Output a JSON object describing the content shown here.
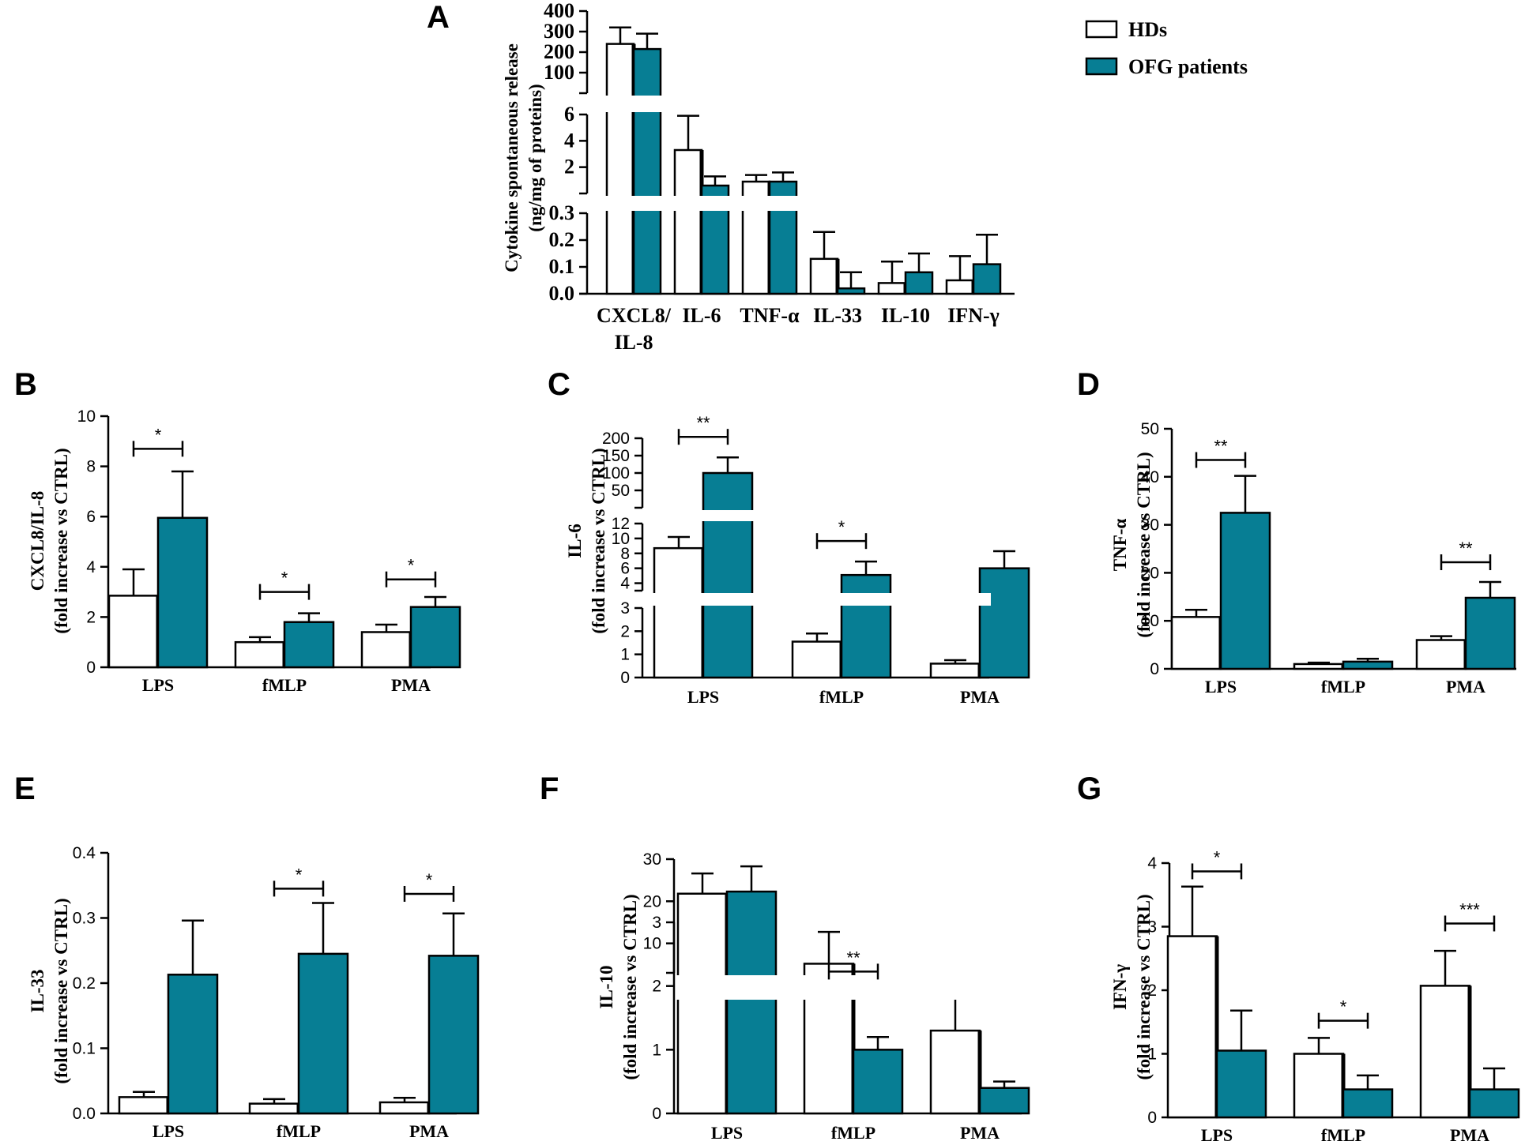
{
  "colors": {
    "hd": "#ffffff",
    "ofg": "#077e94",
    "stroke": "#000000"
  },
  "legend": {
    "hd_label": "HDs",
    "ofg_label": "OFG patients"
  },
  "chart_data": [
    {
      "panel": "A",
      "type": "bar",
      "ylabel": [
        "Cytokine spontaneous release",
        "(ng/mg of proteins)"
      ],
      "categories": [
        "CXCL8/ IL-8",
        "IL-6",
        "TNF-α",
        "IL-33",
        "IL-10",
        "IFN-γ"
      ],
      "series": [
        {
          "name": "HDs",
          "values": [
            240,
            3.3,
            0.9,
            0.13,
            0.04,
            0.05
          ],
          "errors": [
            80,
            2.6,
            0.5,
            0.1,
            0.08,
            0.09
          ]
        },
        {
          "name": "OFG patients",
          "values": [
            215,
            0.6,
            0.9,
            0.02,
            0.08,
            0.11
          ],
          "errors": [
            75,
            0.7,
            0.7,
            0.06,
            0.07,
            0.11
          ]
        }
      ],
      "y_segments": [
        {
          "range": [
            0,
            0.3
          ],
          "ticks": [
            0.0,
            0.1,
            0.2,
            0.3
          ],
          "tick_labels": [
            "0.0",
            "0.1",
            "0.2",
            "0.3"
          ]
        },
        {
          "range": [
            0,
            6
          ],
          "ticks": [
            2,
            4,
            6
          ],
          "tick_labels": [
            "2",
            "4",
            "6"
          ]
        },
        {
          "range": [
            0,
            400
          ],
          "ticks": [
            100,
            200,
            300,
            400
          ],
          "tick_labels": [
            "100",
            "200",
            "300",
            "400"
          ]
        }
      ],
      "significance": []
    },
    {
      "panel": "B",
      "type": "bar",
      "ylabel": [
        "CXCL8/IL-8",
        "(fold increase vs CTRL)"
      ],
      "categories": [
        "LPS",
        "fMLP",
        "PMA"
      ],
      "series": [
        {
          "name": "HDs",
          "values": [
            2.85,
            1.0,
            1.4
          ],
          "errors": [
            1.05,
            0.2,
            0.3
          ]
        },
        {
          "name": "OFG patients",
          "values": [
            5.95,
            1.8,
            2.4
          ],
          "errors": [
            1.85,
            0.35,
            0.4
          ]
        }
      ],
      "ylim": [
        0,
        10
      ],
      "yticks": [
        0,
        2,
        4,
        6,
        8,
        10
      ],
      "ytick_labels": [
        "0",
        "2",
        "4",
        "6",
        "8",
        "10"
      ],
      "significance": [
        {
          "group": 0,
          "label": "*",
          "y": 8.7
        },
        {
          "group": 1,
          "label": "*",
          "y": 3.0
        },
        {
          "group": 2,
          "label": "*",
          "y": 3.5
        }
      ]
    },
    {
      "panel": "C",
      "type": "bar",
      "ylabel": [
        "IL-6",
        "(fold increase vs CTRL)"
      ],
      "categories": [
        "LPS",
        "fMLP",
        "PMA"
      ],
      "series": [
        {
          "name": "HDs",
          "values": [
            8.7,
            1.55,
            0.6
          ],
          "errors": [
            1.5,
            0.35,
            0.15
          ]
        },
        {
          "name": "OFG patients",
          "values": [
            100,
            5.1,
            6.0
          ],
          "errors": [
            45,
            1.8,
            2.3
          ]
        }
      ],
      "y_segments": [
        {
          "range": [
            0,
            3
          ],
          "ticks": [
            0,
            1,
            2,
            3
          ],
          "tick_labels": [
            "0",
            "1",
            "2",
            "3"
          ]
        },
        {
          "range": [
            3,
            12
          ],
          "ticks": [
            4,
            6,
            8,
            10,
            12
          ],
          "tick_labels": [
            "4",
            "6",
            "8",
            "10",
            "12"
          ]
        },
        {
          "range": [
            0,
            200
          ],
          "ticks": [
            50,
            100,
            150,
            200
          ],
          "tick_labels": [
            "50",
            "100",
            "150",
            "200"
          ]
        }
      ],
      "significance": [
        {
          "group": 0,
          "label": "**"
        },
        {
          "group": 1,
          "label": "*"
        }
      ]
    },
    {
      "panel": "D",
      "type": "bar",
      "ylabel": [
        "TNF-α",
        "(fold increase vs CTRL)"
      ],
      "categories": [
        "LPS",
        "fMLP",
        "PMA"
      ],
      "series": [
        {
          "name": "HDs",
          "values": [
            10.8,
            1.0,
            6.0
          ],
          "errors": [
            1.5,
            0.3,
            0.8
          ]
        },
        {
          "name": "OFG patients",
          "values": [
            32.5,
            1.5,
            14.8
          ],
          "errors": [
            7.7,
            0.6,
            3.3
          ]
        }
      ],
      "ylim": [
        0,
        50
      ],
      "yticks": [
        0,
        10,
        20,
        30,
        40,
        50
      ],
      "ytick_labels": [
        "0",
        "10",
        "20",
        "30",
        "40",
        "50"
      ],
      "significance": [
        {
          "group": 0,
          "label": "**",
          "y": 43.5
        },
        {
          "group": 2,
          "label": "**",
          "y": 22.2
        }
      ]
    },
    {
      "panel": "E",
      "type": "bar",
      "ylabel": [
        "IL-33",
        "(fold increase vs CTRL)"
      ],
      "categories": [
        "LPS",
        "fMLP",
        "PMA"
      ],
      "series": [
        {
          "name": "HDs",
          "values": [
            0.025,
            0.015,
            0.017
          ],
          "errors": [
            0.008,
            0.007,
            0.007
          ]
        },
        {
          "name": "OFG patients",
          "values": [
            0.213,
            0.245,
            0.242
          ],
          "errors": [
            0.083,
            0.078,
            0.065
          ]
        }
      ],
      "ylim": [
        0,
        0.4
      ],
      "yticks": [
        0.0,
        0.1,
        0.2,
        0.3,
        0.4
      ],
      "ytick_labels": [
        "0.0",
        "0.1",
        "0.2",
        "0.3",
        "0.4"
      ],
      "significance": [
        {
          "group": 1,
          "label": "*",
          "y": 0.345
        },
        {
          "group": 2,
          "label": "*",
          "y": 0.337
        }
      ]
    },
    {
      "panel": "F",
      "type": "bar",
      "ylabel": [
        "IL-10",
        "(fold increase vs CTRL)"
      ],
      "categories": [
        "LPS",
        "fMLP",
        "PMA"
      ],
      "series": [
        {
          "name": "HDs",
          "values": [
            21.8,
            2.35,
            1.3
          ],
          "errors": [
            4.8,
            0.5,
            0.6
          ]
        },
        {
          "name": "OFG patients",
          "values": [
            22.3,
            1.0,
            0.4
          ],
          "errors": [
            6.0,
            0.2,
            0.1
          ]
        }
      ],
      "y_segments": [
        {
          "range": [
            0,
            3
          ],
          "ticks": [
            0,
            1,
            2,
            3
          ],
          "tick_labels": [
            "0",
            "1",
            "2",
            "3"
          ]
        },
        {
          "range": [
            3,
            30
          ],
          "ticks": [
            10,
            20,
            30
          ],
          "tick_labels": [
            "10",
            "20",
            "30"
          ]
        }
      ],
      "significance": [
        {
          "group": 1,
          "label": "**",
          "y": 3.3
        }
      ]
    },
    {
      "panel": "G",
      "type": "bar",
      "ylabel": [
        "IFN-γ",
        "(fold increase vs CTRL)"
      ],
      "categories": [
        "LPS",
        "fMLP",
        "PMA"
      ],
      "series": [
        {
          "name": "HDs",
          "values": [
            2.85,
            1.0,
            2.07
          ],
          "errors": [
            0.78,
            0.25,
            0.55
          ]
        },
        {
          "name": "OFG patients",
          "values": [
            1.05,
            0.44,
            0.44
          ],
          "errors": [
            0.63,
            0.22,
            0.33
          ]
        }
      ],
      "ylim": [
        0,
        4
      ],
      "yticks": [
        0,
        1,
        2,
        3,
        4
      ],
      "ytick_labels": [
        "0",
        "1",
        "2",
        "3",
        "4"
      ],
      "significance": [
        {
          "group": 0,
          "label": "*",
          "y": 3.87
        },
        {
          "group": 1,
          "label": "*",
          "y": 1.52
        },
        {
          "group": 2,
          "label": "***",
          "y": 3.05
        }
      ]
    }
  ]
}
